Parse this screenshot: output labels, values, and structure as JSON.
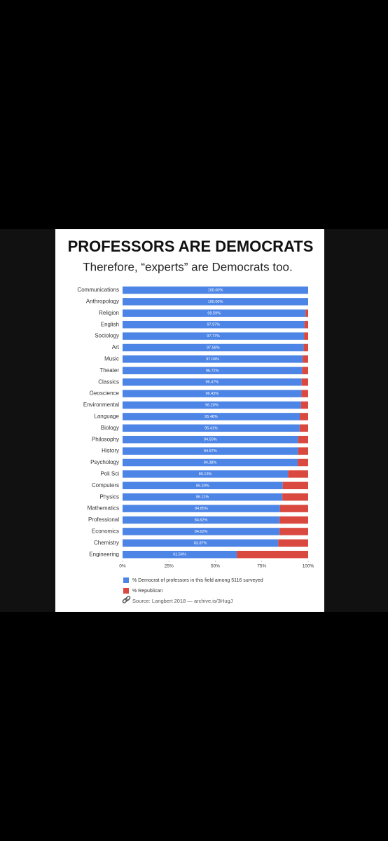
{
  "chart_data": {
    "type": "stacked-barh",
    "title": "PROFESSORS ARE DEMOCRATS",
    "subtitle": "Therefore, “experts” are Democrats too.",
    "categories": [
      "Communications",
      "Anthropology",
      "Religion",
      "English",
      "Sociology",
      "Art",
      "Music",
      "Theater",
      "Classics",
      "Geoscience",
      "Environmental",
      "Language",
      "Biology",
      "Philosophy",
      "History",
      "Psychology",
      "Poli Sci",
      "Computers",
      "Physics",
      "Mathematics",
      "Professional",
      "Economics",
      "Chemistry",
      "Engineering"
    ],
    "series": [
      {
        "name": "% Democrat of professors in this field among 5116 surveyed",
        "color": "#4d85e6",
        "values": [
          100,
          100,
          98.59,
          97.97,
          97.77,
          97.58,
          97.04,
          96.72,
          96.47,
          96.43,
          96.2,
          95.48,
          95.41,
          94.59,
          94.57,
          94.38,
          89.13,
          86.3,
          86.11,
          84.85,
          84.62,
          84.62,
          83.87,
          61.54
        ],
        "value_labels": [
          "100.00%",
          "100.00%",
          "98.59%",
          "97.97%",
          "97.77%",
          "97.58%",
          "97.04%",
          "96.72%",
          "96.47%",
          "96.43%",
          "96.20%",
          "95.48%",
          "95.41%",
          "94.59%",
          "94.57%",
          "94.38%",
          "89.13%",
          "86.30%",
          "86.11%",
          "84.85%",
          "84.62%",
          "84.62%",
          "83.87%",
          "61.54%"
        ]
      },
      {
        "name": "% Republican",
        "color": "#d9493f",
        "values": [
          0,
          0,
          1.41,
          2.03,
          2.23,
          2.42,
          2.96,
          3.28,
          3.53,
          3.57,
          3.8,
          4.52,
          4.59,
          5.41,
          5.43,
          5.62,
          10.87,
          13.7,
          13.89,
          15.15,
          15.38,
          15.38,
          16.13,
          38.46
        ]
      }
    ],
    "xlim": [
      0,
      100
    ],
    "xticks": [
      {
        "value": 0,
        "label": "0%"
      },
      {
        "value": 25,
        "label": "25%"
      },
      {
        "value": 50,
        "label": "50%"
      },
      {
        "value": 75,
        "label": "75%"
      },
      {
        "value": 100,
        "label": "100%"
      }
    ],
    "source": "Source: Langbert 2018 — archive.is/3HugJ"
  }
}
